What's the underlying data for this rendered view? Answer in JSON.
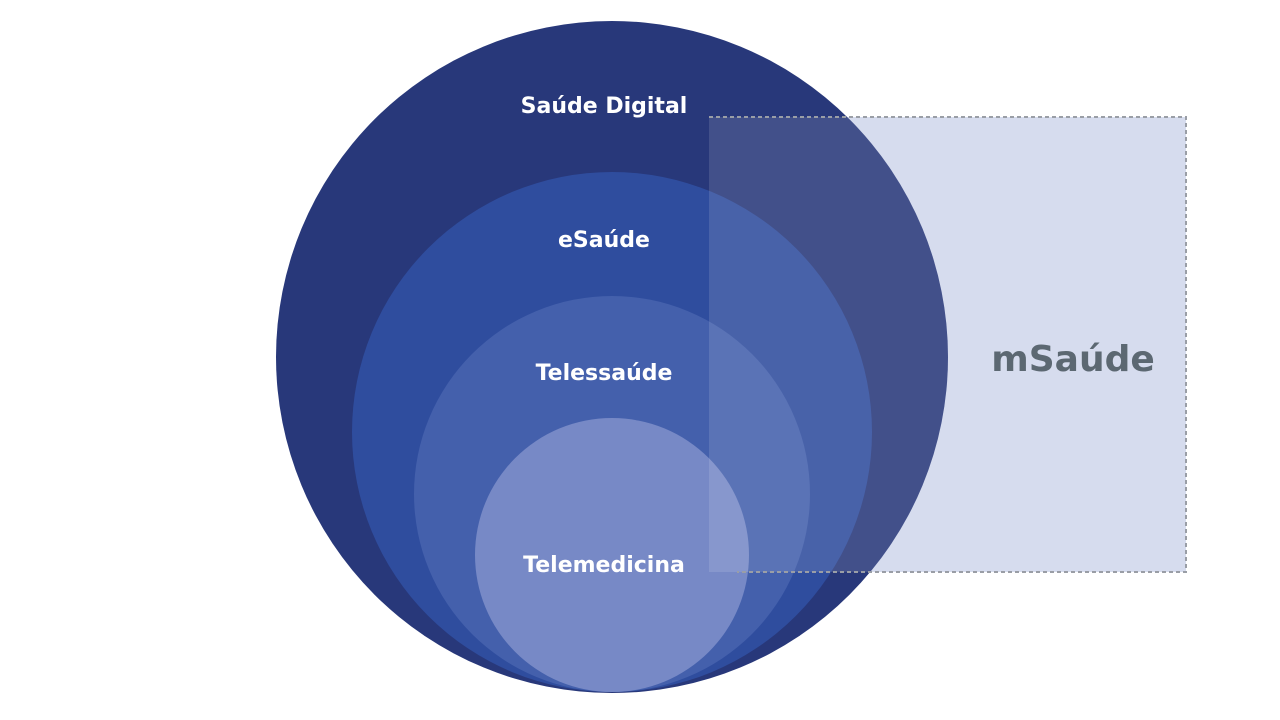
{
  "diagram": {
    "layers": [
      {
        "id": "saude-digital",
        "label": "Saúde Digital",
        "color": "#28387a"
      },
      {
        "id": "esaude",
        "label": "eSaúde",
        "color": "#2f4d9e"
      },
      {
        "id": "telessaude",
        "label": "Telessaúde",
        "color": "#4460ac"
      },
      {
        "id": "telemedicina",
        "label": "Telemedicina",
        "color": "#7789c6"
      }
    ],
    "overlay": {
      "label": "mSaúde",
      "fill_color": "#d6dcee",
      "label_color": "#5c6872",
      "border_color": "#9a9ea6"
    }
  }
}
